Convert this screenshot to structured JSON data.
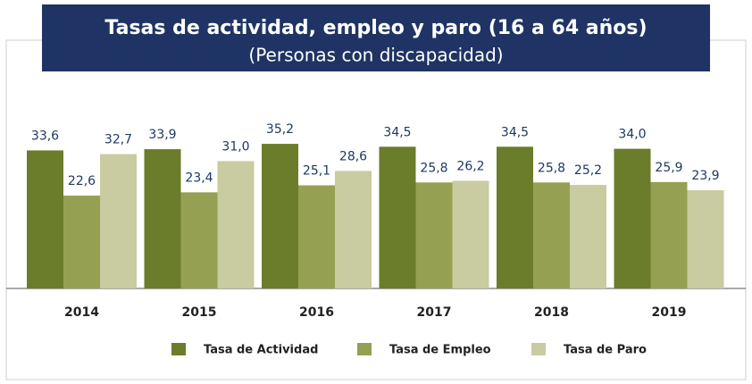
{
  "chart_data": {
    "type": "bar",
    "title": "Tasas de actividad, empleo y paro (16 a 64 años)",
    "subtitle": "(Personas con discapacidad)",
    "categories": [
      "2014",
      "2015",
      "2016",
      "2017",
      "2018",
      "2019"
    ],
    "ylim": [
      0,
      40
    ],
    "series": [
      {
        "name": "Tasa de Actividad",
        "color": "#6b7c2a",
        "values": [
          33.6,
          33.9,
          35.2,
          34.5,
          34.5,
          34.0
        ],
        "value_labels": [
          "33,6",
          "33,9",
          "35,2",
          "34,5",
          "34,5",
          "34,0"
        ]
      },
      {
        "name": "Tasa de Empleo",
        "color": "#96a052",
        "values": [
          22.6,
          23.4,
          25.1,
          25.8,
          25.8,
          25.9
        ],
        "value_labels": [
          "22,6",
          "23,4",
          "25,1",
          "25,8",
          "25,8",
          "25,9"
        ]
      },
      {
        "name": "Tasa de Paro",
        "color": "#c9cba0",
        "values": [
          32.7,
          31.0,
          28.6,
          26.2,
          25.2,
          23.9
        ],
        "value_labels": [
          "32,7",
          "31,0",
          "28,6",
          "26,2",
          "25,2",
          "23,9"
        ]
      }
    ]
  }
}
